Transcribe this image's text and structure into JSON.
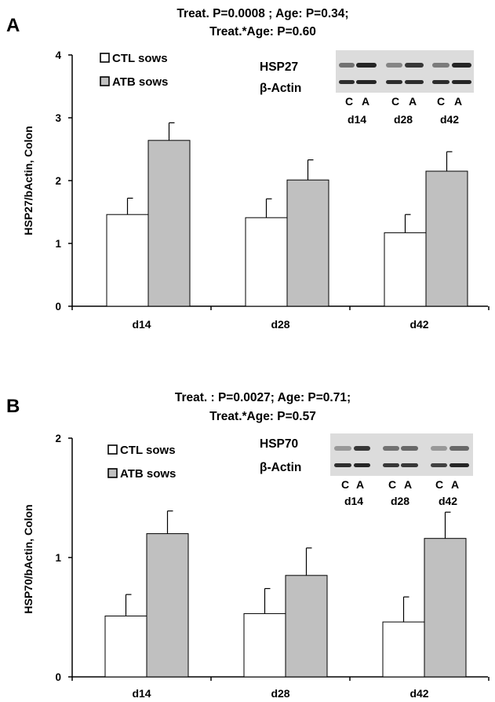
{
  "chart_data": [
    {
      "type": "bar",
      "panel": "A",
      "title_line1": "Treat.  P=0.0008 ; Age: P=0.34;",
      "title_line2": "Treat.*Age: P=0.60",
      "ylabel": "HSP27/bActin, Colon",
      "xlabel": "",
      "ylim": [
        0,
        4
      ],
      "yticks": [
        "0",
        "1",
        "2",
        "3",
        "4"
      ],
      "categories": [
        "d14",
        "d28",
        "d42"
      ],
      "series": [
        {
          "name": "CTL sows",
          "color": "#ffffff",
          "values": [
            1.46,
            1.41,
            1.17
          ],
          "errors": [
            0.26,
            0.3,
            0.29
          ]
        },
        {
          "name": "ATB sows",
          "color": "#c0c0c0",
          "values": [
            2.64,
            2.01,
            2.15
          ],
          "errors": [
            0.28,
            0.32,
            0.31
          ]
        }
      ],
      "legend_position": "top-left",
      "grid": false,
      "blot": {
        "protein": "HSP27",
        "control": "β-Actin",
        "lanes": [
          "C",
          "A",
          "C",
          "A",
          "C",
          "A"
        ],
        "groups": [
          "d14",
          "d28",
          "d42"
        ]
      }
    },
    {
      "type": "bar",
      "panel": "B",
      "title_line1": "Treat. : P=0.0027; Age: P=0.71;",
      "title_line2": "Treat.*Age: P=0.57",
      "ylabel": "HSP70/bActin, Colon",
      "xlabel": "",
      "ylim": [
        0,
        2
      ],
      "yticks": [
        "0",
        "1",
        "2"
      ],
      "categories": [
        "d14",
        "d28",
        "d42"
      ],
      "series": [
        {
          "name": "CTL sows",
          "color": "#ffffff",
          "values": [
            0.51,
            0.53,
            0.46
          ],
          "errors": [
            0.18,
            0.21,
            0.21
          ]
        },
        {
          "name": "ATB sows",
          "color": "#c0c0c0",
          "values": [
            1.2,
            0.85,
            1.16
          ],
          "errors": [
            0.19,
            0.23,
            0.22
          ]
        }
      ],
      "legend_position": "top-left",
      "grid": false,
      "blot": {
        "protein": "HSP70",
        "control": "β-Actin",
        "lanes": [
          "C",
          "A",
          "C",
          "A",
          "C",
          "A"
        ],
        "groups": [
          "d14",
          "d28",
          "d42"
        ]
      }
    }
  ]
}
